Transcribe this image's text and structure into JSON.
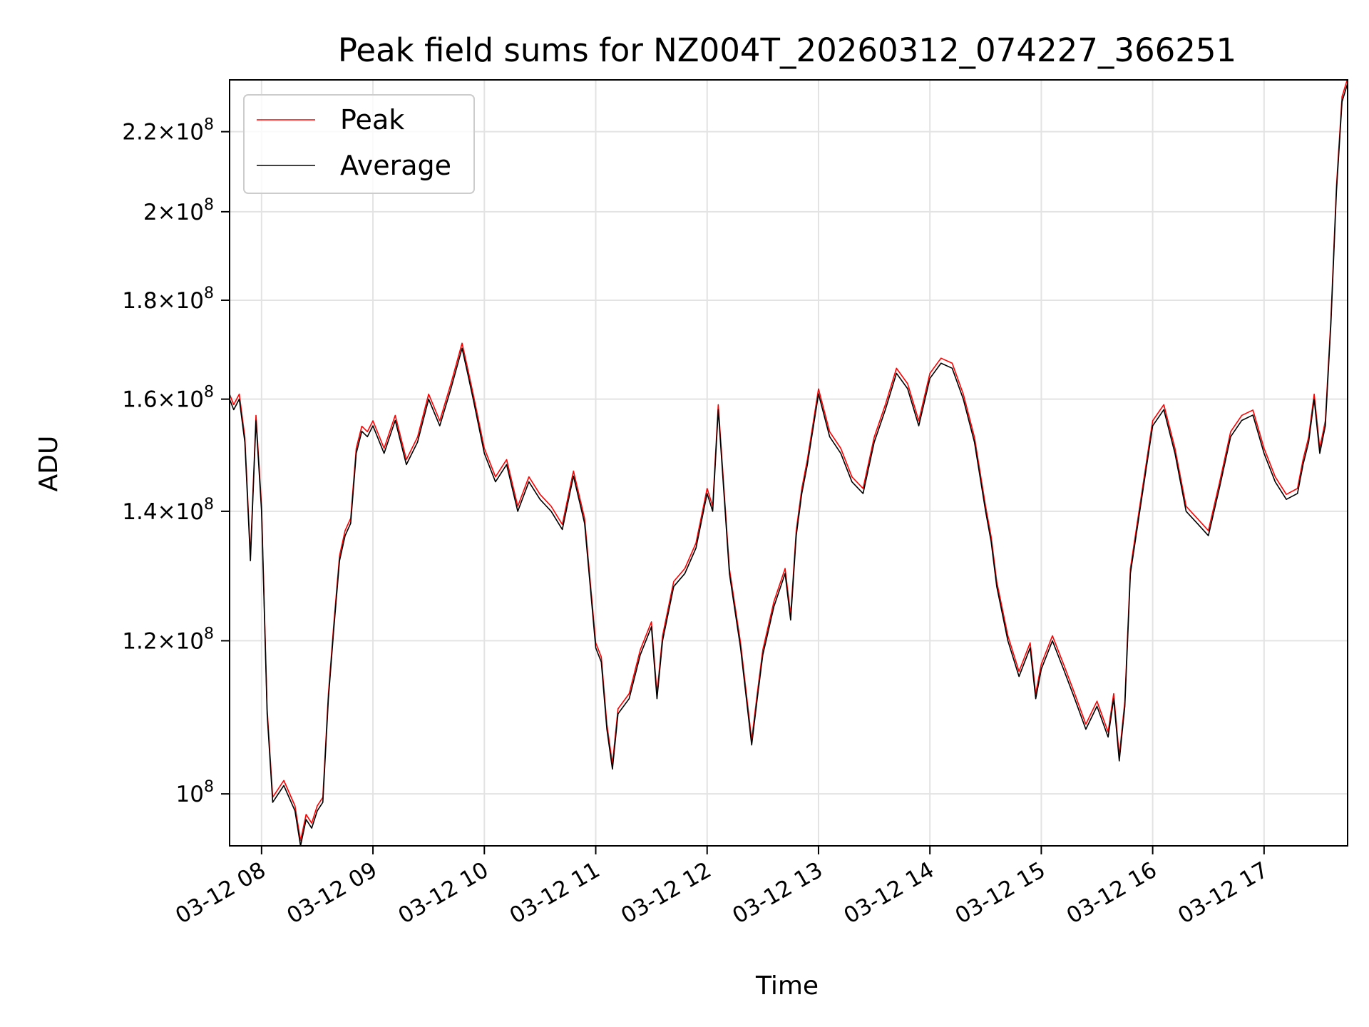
{
  "chart_data": {
    "type": "line",
    "title": "Peak field sums for NZ004T_20260312_074227_366251",
    "xlabel": "Time",
    "ylabel": "ADU",
    "yscale": "log",
    "grid": true,
    "legend_placement": "top-left",
    "x_tick_labels": [
      "03-12 08",
      "03-12 09",
      "03-12 10",
      "03-12 11",
      "03-12 12",
      "03-12 13",
      "03-12 14",
      "03-12 15",
      "03-12 16",
      "03-12 17"
    ],
    "x_ticks_hours": [
      8,
      9,
      10,
      11,
      12,
      13,
      14,
      15,
      16,
      17
    ],
    "xlim_hours": [
      7.713,
      17.75
    ],
    "ylim": [
      94000000,
      234000000
    ],
    "y_ticks": [
      {
        "value": 100000000,
        "mantissa": "",
        "exp": "8"
      },
      {
        "value": 120000000,
        "mantissa": "1.2",
        "exp": "8"
      },
      {
        "value": 140000000,
        "mantissa": "1.4",
        "exp": "8"
      },
      {
        "value": 160000000,
        "mantissa": "1.6",
        "exp": "8"
      },
      {
        "value": 180000000,
        "mantissa": "1.8",
        "exp": "8"
      },
      {
        "value": 200000000,
        "mantissa": "2",
        "exp": "8"
      },
      {
        "value": 220000000,
        "mantissa": "2.2",
        "exp": "8"
      }
    ],
    "series": [
      {
        "name": "Peak",
        "color": "#ff0000"
      },
      {
        "name": "Average",
        "color": "#000000"
      }
    ],
    "x_hours": [
      7.713,
      7.75,
      7.8,
      7.85,
      7.9,
      7.95,
      8.0,
      8.05,
      8.1,
      8.2,
      8.3,
      8.35,
      8.4,
      8.45,
      8.5,
      8.55,
      8.6,
      8.65,
      8.7,
      8.75,
      8.8,
      8.85,
      8.9,
      8.95,
      9.0,
      9.1,
      9.2,
      9.3,
      9.4,
      9.5,
      9.6,
      9.7,
      9.8,
      9.85,
      9.9,
      10.0,
      10.1,
      10.2,
      10.3,
      10.4,
      10.5,
      10.6,
      10.7,
      10.8,
      10.9,
      11.0,
      11.05,
      11.1,
      11.15,
      11.2,
      11.3,
      11.4,
      11.5,
      11.55,
      11.6,
      11.7,
      11.8,
      11.9,
      12.0,
      12.05,
      12.1,
      12.2,
      12.3,
      12.4,
      12.45,
      12.5,
      12.6,
      12.7,
      12.75,
      12.8,
      12.85,
      12.9,
      13.0,
      13.1,
      13.2,
      13.3,
      13.4,
      13.5,
      13.6,
      13.7,
      13.8,
      13.9,
      14.0,
      14.1,
      14.2,
      14.3,
      14.4,
      14.5,
      14.55,
      14.6,
      14.7,
      14.8,
      14.9,
      14.95,
      15.0,
      15.1,
      15.2,
      15.3,
      15.4,
      15.5,
      15.6,
      15.65,
      15.7,
      15.75,
      15.8,
      15.9,
      16.0,
      16.1,
      16.2,
      16.3,
      16.4,
      16.5,
      16.6,
      16.7,
      16.8,
      16.9,
      17.0,
      17.1,
      17.2,
      17.3,
      17.35,
      17.4,
      17.45,
      17.5,
      17.55,
      17.6,
      17.65,
      17.7,
      17.75
    ],
    "average": [
      160000000,
      158000000,
      160000000,
      152000000,
      132000000,
      156000000,
      140000000,
      110000000,
      99000000,
      101000000,
      98000000,
      94000000,
      97000000,
      96000000,
      98000000,
      99000000,
      112000000,
      122000000,
      132000000,
      136000000,
      138000000,
      150000000,
      154000000,
      153000000,
      155000000,
      150000000,
      156000000,
      148000000,
      152000000,
      160000000,
      155000000,
      162000000,
      170000000,
      165000000,
      160000000,
      150000000,
      145000000,
      148000000,
      140000000,
      145000000,
      142000000,
      140000000,
      137000000,
      146000000,
      138000000,
      119000000,
      117000000,
      108000000,
      103000000,
      110000000,
      112000000,
      118000000,
      122000000,
      112000000,
      120000000,
      128000000,
      130000000,
      134000000,
      143000000,
      140000000,
      158000000,
      130000000,
      119000000,
      106000000,
      112000000,
      118000000,
      125000000,
      130000000,
      123000000,
      136000000,
      143000000,
      148000000,
      161000000,
      153000000,
      150000000,
      145000000,
      143000000,
      152000000,
      158000000,
      165000000,
      162000000,
      155000000,
      164000000,
      167000000,
      166000000,
      160000000,
      152000000,
      140000000,
      135000000,
      128000000,
      120000000,
      115000000,
      119000000,
      112000000,
      116000000,
      120000000,
      116000000,
      112000000,
      108000000,
      111000000,
      107000000,
      112000000,
      104000000,
      111000000,
      130000000,
      142000000,
      155000000,
      158000000,
      150000000,
      140000000,
      138000000,
      136000000,
      144000000,
      153000000,
      156000000,
      157000000,
      150000000,
      145000000,
      142000000,
      143000000,
      148000000,
      152000000,
      160000000,
      150000000,
      155000000,
      175000000,
      205000000,
      228000000,
      233000000
    ]
  }
}
